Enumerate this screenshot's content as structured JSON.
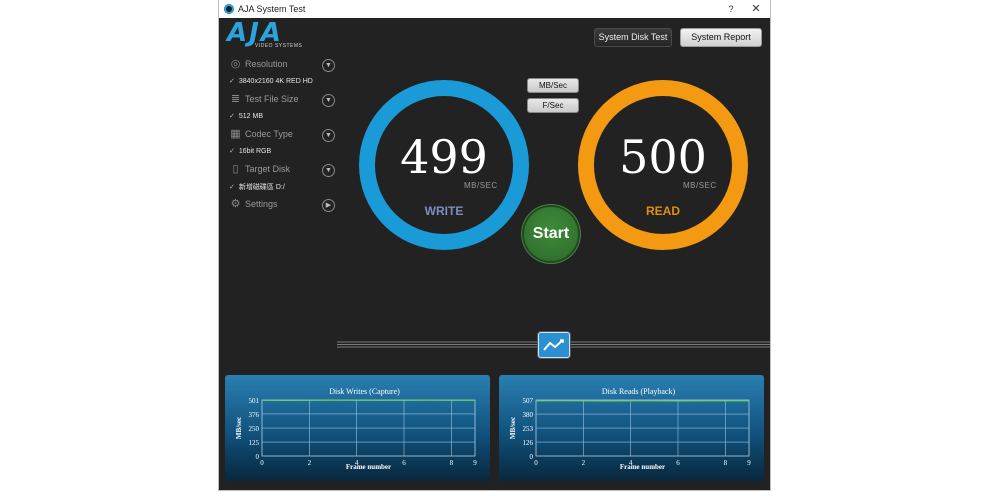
{
  "window": {
    "title": "AJA System Test",
    "help": "?",
    "close": "✕"
  },
  "logo": {
    "word": "AJA",
    "sub": "VIDEO SYSTEMS"
  },
  "sidebar": {
    "resolution": {
      "label": "Resolution",
      "value": "3840x2160 4K RED HD"
    },
    "test_file_size": {
      "label": "Test File Size",
      "value": "512 MB"
    },
    "codec_type": {
      "label": "Codec Type",
      "value": "16bit RGB"
    },
    "target_disk": {
      "label": "Target Disk",
      "value": "新增磁碟區 D:/"
    },
    "settings": {
      "label": "Settings"
    },
    "check": "✓"
  },
  "header": {
    "disk_test_button": "System Disk Test",
    "report_button": "System Report"
  },
  "units": {
    "mbsec": "MB/Sec",
    "fsec": "F/Sec"
  },
  "write": {
    "value": "499",
    "unit": "MB/SEC",
    "label": "WRITE",
    "color": "#1a9ad6",
    "label_color": "#7a8fbf"
  },
  "read": {
    "value": "500",
    "unit": "MB/SEC",
    "label": "READ",
    "color": "#f39a12",
    "label_color": "#e08e12"
  },
  "start_button": "Start",
  "colors": {
    "panel_line": "#6fd06a",
    "grid": "#9cc2dc"
  },
  "chart_data": [
    {
      "type": "line",
      "title": "Disk Writes (Capture)",
      "xlabel": "Frame number",
      "ylabel": "MB/sec",
      "xlim": [
        0,
        9
      ],
      "ylim": [
        0,
        501
      ],
      "xticks": [
        "0",
        "2",
        "4",
        "6",
        "8",
        "9"
      ],
      "yticks": [
        "0",
        "125",
        "250",
        "376",
        "501"
      ],
      "series": [
        {
          "x": [
            0,
            1,
            2,
            3,
            4,
            5,
            6,
            7,
            8,
            9
          ],
          "y": [
            499,
            497,
            499,
            500,
            499,
            499,
            499,
            500,
            499,
            499
          ]
        }
      ]
    },
    {
      "type": "line",
      "title": "Disk Reads (Playback)",
      "xlabel": "Frame number",
      "ylabel": "MB/sec",
      "xlim": [
        0,
        9
      ],
      "ylim": [
        0,
        507
      ],
      "xticks": [
        "0",
        "2",
        "4",
        "6",
        "8",
        "9"
      ],
      "yticks": [
        "0",
        "126",
        "253",
        "380",
        "507"
      ],
      "series": [
        {
          "x": [
            0,
            1,
            2,
            3,
            4,
            5,
            6,
            7,
            8,
            9
          ],
          "y": [
            500,
            501,
            500,
            499,
            500,
            500,
            499,
            500,
            500,
            500
          ]
        }
      ]
    }
  ]
}
